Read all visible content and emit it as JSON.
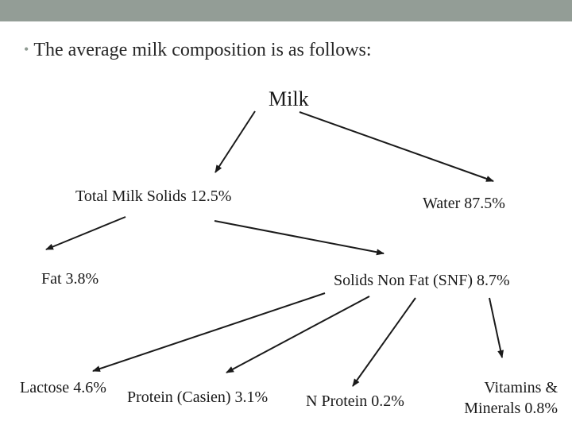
{
  "slide": {
    "bullet": "The average milk composition is as follows:"
  },
  "tree": {
    "root": "Milk",
    "total_solids": "Total Milk Solids  12.5%",
    "water": "Water 87.5%",
    "fat": "Fat 3.8%",
    "snf": "Solids Non Fat (SNF) 8.7%",
    "lactose": "Lactose 4.6%",
    "protein_casein": "Protein (Casien) 3.1%",
    "n_protein": "N Protein 0.2%",
    "vitamins_line1": "Vitamins &",
    "vitamins_line2": "Minerals 0.8%"
  },
  "colors": {
    "topbar": "#939d96",
    "bullet": "#8f9b92",
    "text": "#1a1a1a",
    "arrow": "#1a1a1a"
  }
}
